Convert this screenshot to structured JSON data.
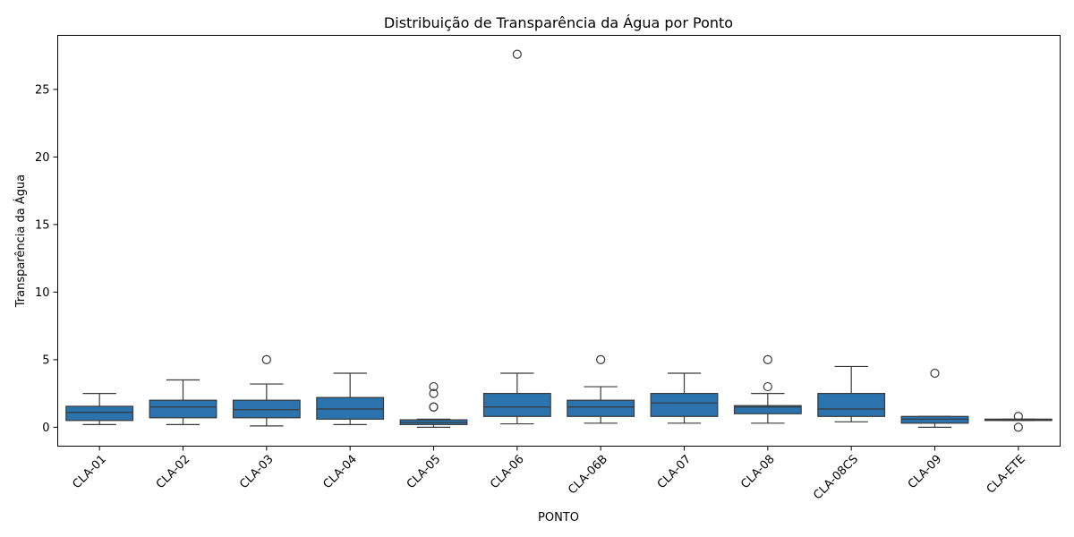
{
  "chart_data": {
    "type": "box",
    "title": "Distribuição de Transparência da Água por Ponto",
    "xlabel": "PONTO",
    "ylabel": "Transparência da Água",
    "ylim": [
      -1.4,
      29.0
    ],
    "yticks": [
      0,
      5,
      10,
      15,
      20,
      25
    ],
    "grid": false,
    "color": "#2a73ae",
    "categories": [
      "CLA-01",
      "CLA-02",
      "CLA-03",
      "CLA-04",
      "CLA-05",
      "CLA-06",
      "CLA-06B",
      "CLA-07",
      "CLA-08",
      "CLA-08CS",
      "CLA-09",
      "CLA-ETE"
    ],
    "boxes": [
      {
        "whislo": 0.2,
        "q1": 0.5,
        "med": 1.1,
        "q3": 1.55,
        "whishi": 2.5,
        "fliers": []
      },
      {
        "whislo": 0.2,
        "q1": 0.7,
        "med": 1.5,
        "q3": 2.0,
        "whishi": 3.5,
        "fliers": []
      },
      {
        "whislo": 0.1,
        "q1": 0.7,
        "med": 1.3,
        "q3": 2.0,
        "whishi": 3.2,
        "fliers": [
          5.0
        ]
      },
      {
        "whislo": 0.2,
        "q1": 0.6,
        "med": 1.35,
        "q3": 2.2,
        "whishi": 4.0,
        "fliers": []
      },
      {
        "whislo": 0.0,
        "q1": 0.2,
        "med": 0.35,
        "q3": 0.55,
        "whishi": 0.6,
        "fliers": [
          1.5,
          2.5,
          3.0,
          1.5
        ]
      },
      {
        "whislo": 0.25,
        "q1": 0.8,
        "med": 1.5,
        "q3": 2.5,
        "whishi": 4.0,
        "fliers": [
          27.6
        ]
      },
      {
        "whislo": 0.3,
        "q1": 0.8,
        "med": 1.5,
        "q3": 2.0,
        "whishi": 3.0,
        "fliers": [
          5.0
        ]
      },
      {
        "whislo": 0.3,
        "q1": 0.8,
        "med": 1.8,
        "q3": 2.5,
        "whishi": 4.0,
        "fliers": []
      },
      {
        "whislo": 0.3,
        "q1": 1.0,
        "med": 1.5,
        "q3": 1.6,
        "whishi": 2.5,
        "fliers": [
          3.0,
          5.0
        ]
      },
      {
        "whislo": 0.4,
        "q1": 0.8,
        "med": 1.35,
        "q3": 2.5,
        "whishi": 4.5,
        "fliers": []
      },
      {
        "whislo": 0.0,
        "q1": 0.3,
        "med": 0.6,
        "q3": 0.8,
        "whishi": 0.8,
        "fliers": [
          4.0
        ]
      },
      {
        "whislo": 0.5,
        "q1": 0.5,
        "med": 0.55,
        "q3": 0.6,
        "whishi": 0.6,
        "fliers": [
          0.8,
          0.0
        ]
      }
    ]
  }
}
